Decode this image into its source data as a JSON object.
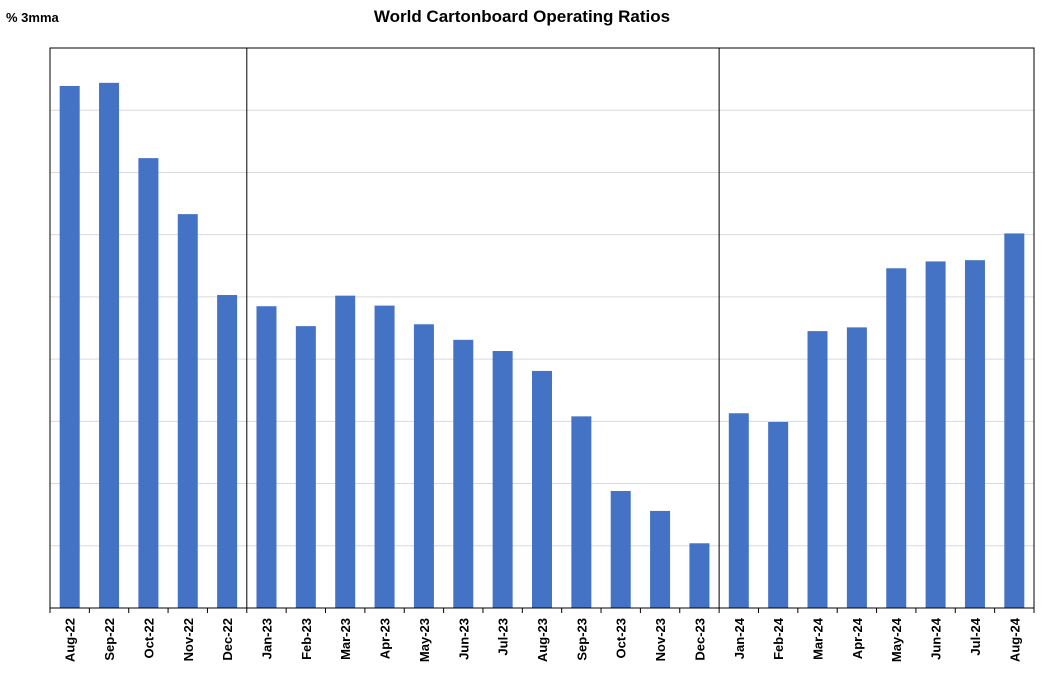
{
  "chart_data": {
    "type": "bar",
    "title": "World Cartonboard Operating Ratios",
    "ylabel": "% 3mma",
    "xlabel": "",
    "ylim": [
      0,
      9
    ],
    "grid": true,
    "y_tick_labels_shown": false,
    "year_dividers_after": [
      "Dec-22",
      "Dec-23"
    ],
    "categories": [
      "Aug-22",
      "Sep-22",
      "Oct-22",
      "Nov-22",
      "Dec-22",
      "Jan-23",
      "Feb-23",
      "Mar-23",
      "Apr-23",
      "May-23",
      "Jun-23",
      "Jul-23",
      "Aug-23",
      "Sep-23",
      "Oct-23",
      "Nov-23",
      "Dec-23",
      "Jan-24",
      "Feb-24",
      "Mar-24",
      "Apr-24",
      "May-24",
      "Jun-24",
      "Jul-24",
      "Aug-24"
    ],
    "series": [
      {
        "name": "Operating Ratio",
        "color": "#4472C4",
        "values": [
          8.39,
          8.44,
          7.23,
          6.33,
          5.03,
          4.85,
          4.53,
          5.02,
          4.86,
          4.56,
          4.31,
          4.13,
          3.81,
          3.08,
          1.88,
          1.56,
          1.04,
          3.13,
          2.99,
          4.45,
          4.51,
          5.46,
          5.57,
          5.59,
          6.02
        ]
      }
    ]
  }
}
